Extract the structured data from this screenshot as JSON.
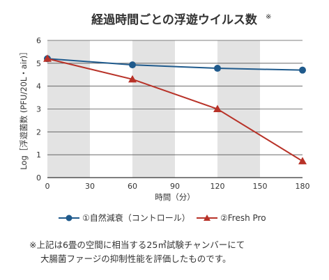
{
  "chart_data": {
    "type": "line",
    "title": "経過時間ごとの浮遊ウイルス数",
    "title_mark": "※",
    "xlabel": "時間（分）",
    "ylabel": "Log［浮遊菌数 (PFU/20L・air)］",
    "x": [
      0,
      60,
      120,
      180
    ],
    "xticks": [
      "0",
      "30",
      "60",
      "90",
      "120",
      "150",
      "180"
    ],
    "xlim": [
      0,
      180
    ],
    "yticks": [
      "0",
      "1",
      "2",
      "3",
      "4",
      "5",
      "6"
    ],
    "ylim": [
      0,
      6
    ],
    "grid": true,
    "shaded_bands": [
      [
        0,
        30
      ],
      [
        60,
        90
      ],
      [
        120,
        150
      ]
    ],
    "legend_position": "bottom",
    "series": [
      {
        "name": "①自然減衰（コントロール）",
        "values": [
          5.2,
          4.93,
          4.78,
          4.7
        ],
        "color": "#1f5a8c",
        "marker": "circle"
      },
      {
        "name": "②Fresh Pro",
        "values": [
          5.2,
          4.3,
          3.0,
          0.72
        ],
        "color": "#b83228",
        "marker": "triangle"
      }
    ]
  },
  "note": {
    "line1": "※上記は6畳の空間に相当する25㎥試験チャンバーにて",
    "line2": "大腸菌ファージの抑制性能を評価したものです。"
  },
  "colors": {
    "band": "#e3e3e3",
    "grid": "#555555",
    "axis": "#333333"
  }
}
